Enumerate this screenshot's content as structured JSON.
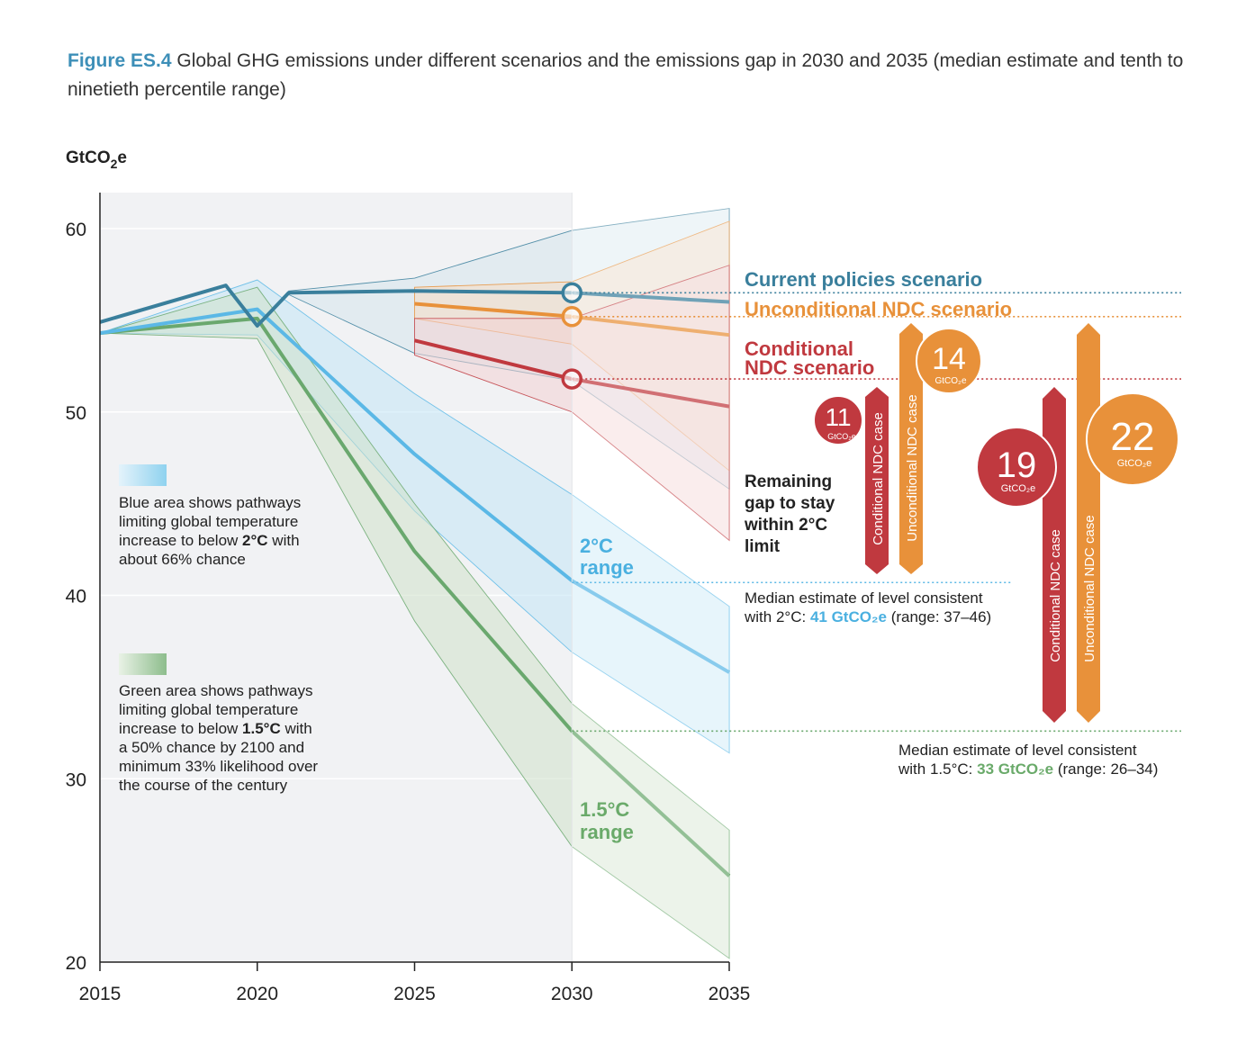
{
  "caption": {
    "label": "Figure ES.4",
    "text": " Global GHG emissions under different scenarios and the emissions gap in 2030 and 2035 (median estimate and tenth to ninetieth percentile range)"
  },
  "colors": {
    "current": "#3a7f9c",
    "unconditional": "#e8913a",
    "conditional": "#c0393f",
    "two_c": "#5bb8e6",
    "one_five_c": "#6aa86e",
    "text_blue": "#4ab0e0",
    "text_green": "#6aaa6a"
  },
  "chart_data": {
    "type": "line",
    "ylabel": "GtCO2e",
    "ylim": [
      20,
      62
    ],
    "xlim": [
      2015,
      2035
    ],
    "x_ticks": [
      2015,
      2020,
      2025,
      2030,
      2035
    ],
    "y_ticks": [
      20,
      30,
      40,
      50,
      60
    ],
    "grid": true,
    "series": [
      {
        "name": "Current policies scenario",
        "color": "#3a7f9c",
        "x": [
          2015,
          2019,
          2020,
          2021,
          2025,
          2030,
          2035
        ],
        "y": [
          54.9,
          56.9,
          54.7,
          56.5,
          56.6,
          56.5,
          56.0
        ]
      },
      {
        "name": "Unconditional NDC scenario",
        "color": "#e8913a",
        "x": [
          2025,
          2030,
          2035
        ],
        "y": [
          55.9,
          55.2,
          54.2
        ]
      },
      {
        "name": "Conditional NDC scenario",
        "color": "#c0393f",
        "x": [
          2025,
          2030,
          2035
        ],
        "y": [
          53.9,
          51.8,
          50.3
        ]
      },
      {
        "name": "2°C range",
        "color": "#5bb8e6",
        "x": [
          2015,
          2020,
          2025,
          2030,
          2035
        ],
        "y": [
          54.3,
          55.6,
          47.7,
          40.8,
          35.8
        ]
      },
      {
        "name": "1.5°C range",
        "color": "#6aa86e",
        "x": [
          2015,
          2020,
          2025,
          2030,
          2035
        ],
        "y": [
          54.3,
          55.1,
          42.4,
          32.6,
          24.7
        ]
      }
    ],
    "bands": [
      {
        "series": "Current policies scenario",
        "x": [
          2021,
          2025,
          2030,
          2035
        ],
        "low": [
          56.4,
          53.2,
          51.7,
          45.8
        ],
        "high": [
          56.6,
          57.3,
          59.9,
          61.1
        ]
      },
      {
        "series": "Unconditional NDC scenario",
        "x": [
          2025,
          2030,
          2035
        ],
        "low": [
          55.1,
          53.7,
          46.8
        ],
        "high": [
          56.8,
          57.1,
          60.4
        ]
      },
      {
        "series": "Conditional NDC scenario",
        "x": [
          2025,
          2030,
          2035
        ],
        "low": [
          53.1,
          50.0,
          43.0
        ],
        "high": [
          55.1,
          55.1,
          58.0
        ]
      },
      {
        "series": "2°C range",
        "x": [
          2015,
          2020,
          2025,
          2030,
          2035
        ],
        "low": [
          54.3,
          54.2,
          44.6,
          36.9,
          31.4
        ],
        "high": [
          54.3,
          57.2,
          51.0,
          45.5,
          39.4
        ]
      },
      {
        "series": "1.5°C range",
        "x": [
          2015,
          2020,
          2025,
          2030,
          2035
        ],
        "low": [
          54.3,
          54.0,
          38.6,
          26.3,
          20.2
        ],
        "high": [
          54.3,
          56.8,
          45.0,
          34.1,
          27.2
        ]
      }
    ],
    "markers_2030": [
      56.5,
      55.2,
      51.8
    ],
    "median_levels": {
      "two_c": 40.7,
      "one_five_c": 32.6
    },
    "gaps": [
      {
        "year": 2030,
        "case": "Conditional NDC case",
        "value": 11,
        "unit": "GtCO₂e"
      },
      {
        "year": 2030,
        "case": "Unconditional NDC case",
        "value": 14,
        "unit": "GtCO₂e"
      },
      {
        "year": 2035,
        "case": "Conditional NDC case",
        "value": 19,
        "unit": "GtCO₂e"
      },
      {
        "year": 2035,
        "case": "Unconditional NDC case",
        "value": 22,
        "unit": "GtCO₂e"
      }
    ]
  },
  "axis": {
    "unit": "GtCO",
    "unit_sub": "2",
    "unit_end": "e",
    "x_labels": [
      "2015",
      "2020",
      "2025",
      "2030",
      "2035"
    ],
    "y_labels": [
      "20",
      "30",
      "40",
      "50",
      "60"
    ]
  },
  "labels": {
    "current": "Current policies scenario",
    "unconditional": "Unconditional NDC scenario",
    "conditional_1": "Conditional",
    "conditional_2": "NDC scenario",
    "two_c_1": "2°C",
    "two_c_2": "range",
    "one_five_c_1": "1.5°C",
    "one_five_c_2": "range",
    "remaining_1": "Remaining",
    "remaining_2": "gap to stay",
    "remaining_3": "within 2°C",
    "remaining_4": "limit",
    "bar_conditional": "Conditional NDC case",
    "bar_unconditional": "Unconditional NDC case",
    "gap_unit": "GtCO₂e",
    "gap_11": "11",
    "gap_14": "14",
    "gap_19": "19",
    "gap_22": "22"
  },
  "notes": {
    "median_2c_1": "Median estimate of level consistent",
    "median_2c_2a": "with 2°C: ",
    "median_2c_2b": "41 GtCO₂e",
    "median_2c_2c": " (range: 37–46)",
    "median_15_1": "Median estimate of level consistent",
    "median_15_2a": "with 1.5°C: ",
    "median_15_2b": "33 GtCO₂e",
    "median_15_2c": " (range: 26–34)"
  },
  "legend": {
    "blue_1": "Blue area shows pathways",
    "blue_2": "limiting global temperature",
    "blue_3a": "increase to below ",
    "blue_3b": "2°C",
    "blue_3c": " with",
    "blue_4": "about 66% chance",
    "green_1": "Green area shows pathways",
    "green_2": "limiting global temperature",
    "green_3a": "increase to below ",
    "green_3b": "1.5°C",
    "green_3c": " with",
    "green_4": "a 50% chance by 2100 and",
    "green_5": "minimum 33% likelihood over",
    "green_6": "the course of the century"
  }
}
